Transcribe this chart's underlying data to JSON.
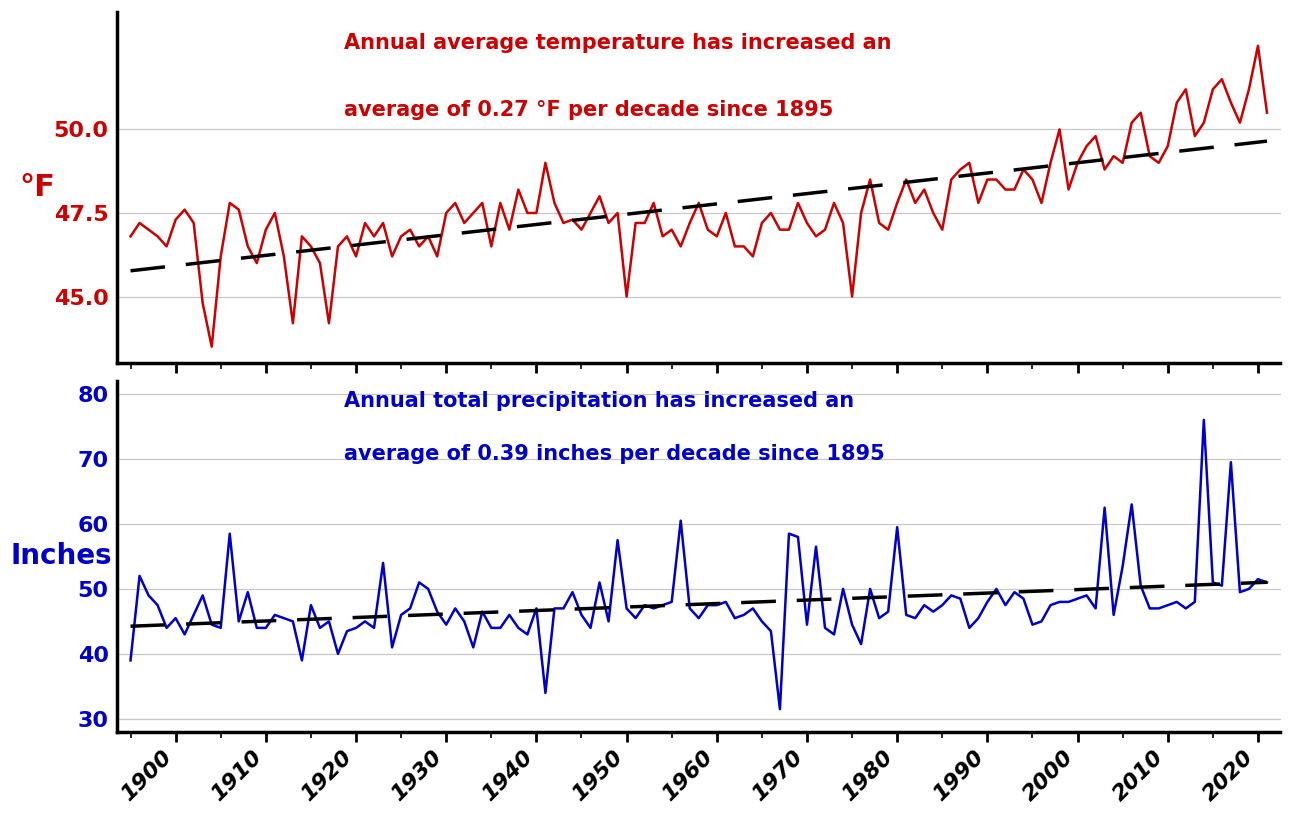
{
  "years": [
    1895,
    1896,
    1897,
    1898,
    1899,
    1900,
    1901,
    1902,
    1903,
    1904,
    1905,
    1906,
    1907,
    1908,
    1909,
    1910,
    1911,
    1912,
    1913,
    1914,
    1915,
    1916,
    1917,
    1918,
    1919,
    1920,
    1921,
    1922,
    1923,
    1924,
    1925,
    1926,
    1927,
    1928,
    1929,
    1930,
    1931,
    1932,
    1933,
    1934,
    1935,
    1936,
    1937,
    1938,
    1939,
    1940,
    1941,
    1942,
    1943,
    1944,
    1945,
    1946,
    1947,
    1948,
    1949,
    1950,
    1951,
    1952,
    1953,
    1954,
    1955,
    1956,
    1957,
    1958,
    1959,
    1960,
    1961,
    1962,
    1963,
    1964,
    1965,
    1966,
    1967,
    1968,
    1969,
    1970,
    1971,
    1972,
    1973,
    1974,
    1975,
    1976,
    1977,
    1978,
    1979,
    1980,
    1981,
    1982,
    1983,
    1984,
    1985,
    1986,
    1987,
    1988,
    1989,
    1990,
    1991,
    1992,
    1993,
    1994,
    1995,
    1996,
    1997,
    1998,
    1999,
    2000,
    2001,
    2002,
    2003,
    2004,
    2005,
    2006,
    2007,
    2008,
    2009,
    2010,
    2011,
    2012,
    2013,
    2014,
    2015,
    2016,
    2017,
    2018,
    2019,
    2020,
    2021
  ],
  "temp": [
    46.8,
    47.2,
    47.0,
    46.8,
    46.5,
    47.3,
    47.6,
    47.2,
    44.8,
    43.5,
    46.2,
    47.8,
    47.6,
    46.5,
    46.0,
    47.0,
    47.5,
    46.2,
    44.2,
    46.8,
    46.5,
    46.0,
    44.2,
    46.5,
    46.8,
    46.2,
    47.2,
    46.8,
    47.2,
    46.2,
    46.8,
    47.0,
    46.5,
    46.8,
    46.2,
    47.5,
    47.8,
    47.2,
    47.5,
    47.8,
    46.5,
    47.8,
    47.0,
    48.2,
    47.5,
    47.5,
    49.0,
    47.8,
    47.2,
    47.3,
    47.0,
    47.5,
    48.0,
    47.2,
    47.5,
    45.0,
    47.2,
    47.2,
    47.8,
    46.8,
    47.0,
    46.5,
    47.2,
    47.8,
    47.0,
    46.8,
    47.5,
    46.5,
    46.5,
    46.2,
    47.2,
    47.5,
    47.0,
    47.0,
    47.8,
    47.2,
    46.8,
    47.0,
    47.8,
    47.2,
    45.0,
    47.5,
    48.5,
    47.2,
    47.0,
    47.8,
    48.5,
    47.8,
    48.2,
    47.5,
    47.0,
    48.5,
    48.8,
    49.0,
    47.8,
    48.5,
    48.5,
    48.2,
    48.2,
    48.8,
    48.5,
    47.8,
    49.0,
    50.0,
    48.2,
    49.0,
    49.5,
    49.8,
    48.8,
    49.2,
    49.0,
    50.2,
    50.5,
    49.2,
    49.0,
    49.5,
    50.8,
    51.2,
    49.8,
    50.2,
    51.2,
    51.5,
    50.8,
    50.2,
    51.2,
    52.5,
    50.5
  ],
  "precip": [
    39.0,
    52.0,
    49.0,
    47.5,
    44.0,
    45.5,
    43.0,
    46.0,
    49.0,
    44.5,
    44.0,
    58.5,
    45.0,
    49.5,
    44.0,
    44.0,
    46.0,
    45.5,
    45.0,
    39.0,
    47.5,
    44.0,
    45.0,
    40.0,
    43.5,
    44.0,
    45.0,
    44.0,
    54.0,
    41.0,
    46.0,
    47.0,
    51.0,
    50.0,
    46.5,
    44.5,
    47.0,
    45.0,
    41.0,
    46.5,
    44.0,
    44.0,
    46.0,
    44.0,
    43.0,
    47.0,
    34.0,
    47.0,
    47.0,
    49.5,
    46.0,
    44.0,
    51.0,
    45.0,
    57.5,
    47.0,
    45.5,
    47.5,
    47.0,
    47.5,
    48.0,
    60.5,
    47.0,
    45.5,
    47.5,
    47.5,
    48.0,
    45.5,
    46.0,
    47.0,
    45.0,
    43.5,
    31.5,
    58.5,
    58.0,
    44.5,
    56.5,
    44.0,
    43.0,
    50.0,
    44.5,
    41.5,
    50.0,
    45.5,
    46.5,
    59.5,
    46.0,
    45.5,
    47.5,
    46.5,
    47.5,
    49.0,
    48.5,
    44.0,
    45.5,
    48.0,
    50.0,
    47.5,
    49.5,
    48.5,
    44.5,
    45.0,
    47.5,
    48.0,
    48.0,
    48.5,
    49.0,
    47.0,
    62.5,
    46.0,
    53.5,
    63.0,
    50.5,
    47.0,
    47.0,
    47.5,
    48.0,
    47.0,
    48.0,
    76.0,
    51.0,
    50.5,
    69.5,
    49.5,
    50.0,
    51.5,
    51.0
  ],
  "temp_color": "#cc0000",
  "precip_color": "#0000cc",
  "trend_color": "#000000",
  "temp_annotation_line1": "Annual average temperature has increased an",
  "temp_annotation_line2": "average of 0.27 °F per decade since 1895",
  "precip_annotation_line1": "Annual total precipitation has increased an",
  "precip_annotation_line2": "average of 0.39 inches per decade since 1895",
  "temp_ylabel": "°F",
  "precip_ylabel": "Inches",
  "temp_yticks": [
    45.0,
    47.5,
    50.0
  ],
  "temp_ylim": [
    43.0,
    53.5
  ],
  "precip_yticks": [
    30,
    40,
    50,
    60,
    70,
    80
  ],
  "precip_ylim": [
    28.0,
    82.0
  ],
  "xticks": [
    1900,
    1910,
    1920,
    1930,
    1940,
    1950,
    1960,
    1970,
    1980,
    1990,
    2000,
    2010,
    2020
  ],
  "xlim": [
    1893.5,
    2022.5
  ],
  "annotation_fontsize": 15,
  "axis_label_fontsize": 22,
  "tick_fontsize": 16,
  "line_width": 1.8,
  "trend_linewidth": 2.5
}
